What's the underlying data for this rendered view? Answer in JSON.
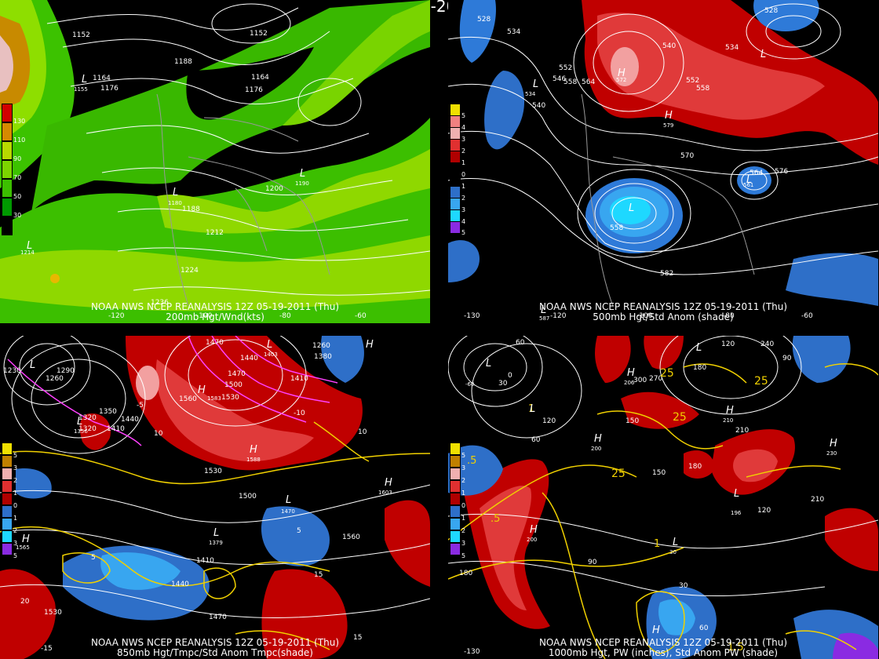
{
  "title": "12Z 05-19-2011 (Thu)",
  "panels": [
    {
      "id": "p200",
      "caption1": "NOAA NWS NCEP REANALYSIS 12Z 05-19-2011 (Thu)",
      "caption2": "200mb Hgt/Wnd(kts)",
      "colorbar": [
        "130",
        "110",
        "90",
        "70",
        "50",
        "30"
      ],
      "height_labels": [
        "1152",
        "1152",
        "1188",
        "1164",
        "1176",
        "1164",
        "1176",
        "1188",
        "1200",
        "1212",
        "1224",
        "1236"
      ],
      "lows": [
        "L",
        "L",
        "L",
        "L"
      ],
      "low_values": [
        "1155",
        "1180",
        "1190",
        "1214"
      ]
    },
    {
      "id": "p500",
      "caption1": "NOAA NWS NCEP REANALYSIS 12Z 05-19-2011 (Thu)",
      "caption2": "500mb Hgt/Std Anom (shade)",
      "colorbar": [
        "5",
        "4",
        "3",
        "2",
        "1",
        "0",
        "1",
        "2",
        "3",
        "4",
        "5"
      ],
      "height_labels": [
        "528",
        "534",
        "546",
        "558",
        "564",
        "552",
        "552",
        "558",
        "540",
        "534",
        "528",
        "540",
        "570",
        "576",
        "564",
        "558",
        "582"
      ],
      "lows": [
        "L",
        "L",
        "L",
        "L",
        "L"
      ],
      "highs": [
        "H",
        "H"
      ],
      "low_values": [
        "534",
        "587",
        "561"
      ],
      "high_values": [
        "572",
        "579"
      ]
    },
    {
      "id": "p850",
      "caption1": "NOAA NWS NCEP REANALYSIS 12Z 05-19-2011 (Thu)",
      "caption2": "850mb Hgt/Tmpc/Std Anom Tmpc(shade)",
      "colorbar": [
        "5",
        "3",
        "2",
        "1",
        "0",
        "1",
        "2",
        "3",
        "5"
      ],
      "height_labels": [
        "1230",
        "1260",
        "1290",
        "1320",
        "1350",
        "1410",
        "1440",
        "1470",
        "1500",
        "1530",
        "1560",
        "1410",
        "1380",
        "1440",
        "1470",
        "1500",
        "1530",
        "1560",
        "1410",
        "1440",
        "1470",
        "1530",
        "1260",
        "1320"
      ],
      "temp_labels": [
        "10",
        "10",
        "5",
        "5",
        "15",
        "15",
        "20",
        "-15",
        "-10",
        "-5"
      ],
      "lows": [
        "L",
        "L",
        "L",
        "L",
        "L"
      ],
      "highs": [
        "H",
        "H",
        "H",
        "H",
        "H"
      ],
      "high_values": [
        "1583",
        "1588",
        "1603",
        "1565"
      ],
      "low_values": [
        "1356",
        "1403",
        "1379",
        "1470"
      ]
    },
    {
      "id": "p1000",
      "caption1": "NOAA NWS NCEP REANALYSIS 12Z 05-19-2011 (Thu)",
      "caption2": "1000mb Hgt, PW (inches), Std Anom PW (shade)",
      "colorbar": [
        "5",
        "3",
        "2",
        "1",
        "0",
        "1",
        "2",
        "3",
        "5"
      ],
      "height_labels": [
        "60",
        "0",
        "30",
        "60",
        "90",
        "120",
        "150",
        "180",
        "210",
        "240",
        "270",
        "300",
        "120",
        "180",
        "150",
        "210",
        "120",
        "180",
        "90",
        "30",
        "60"
      ],
      "pw_labels": [
        "25",
        "25",
        "25",
        ".5",
        ".5",
        "1",
        "1",
        "1.5",
        "25"
      ],
      "lows": [
        "L",
        "L",
        "L",
        "L",
        "L"
      ],
      "highs": [
        "H",
        "H",
        "H",
        "H",
        "H",
        "H"
      ],
      "low_values": [
        "-60",
        "196",
        "30"
      ],
      "high_values": [
        "206",
        "200",
        "210",
        "230",
        "200"
      ]
    }
  ],
  "longitudes": [
    "-120",
    "-100",
    "-80",
    "-60",
    "-130",
    "-120",
    "-100",
    "-80",
    "-60",
    "-130"
  ]
}
